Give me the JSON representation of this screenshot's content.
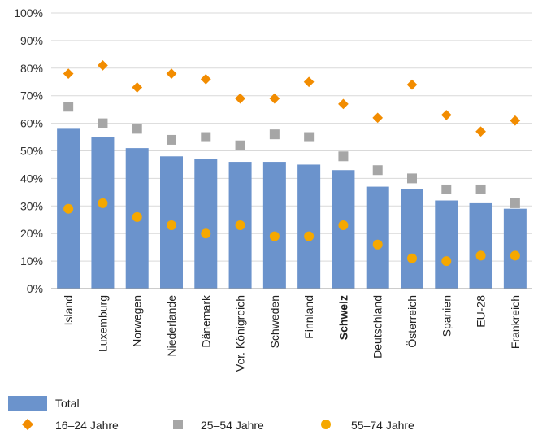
{
  "chart_data": {
    "type": "bar",
    "categories": [
      "Island",
      "Luxemburg",
      "Norwegen",
      "Niederlande",
      "Dänemark",
      "Ver. Königreich",
      "Schweden",
      "Finnland",
      "Schweiz",
      "Deutschland",
      "Österreich",
      "Spanien",
      "EU-28",
      "Frankreich"
    ],
    "highlight_category": "Schweiz",
    "series": [
      {
        "name": "Total",
        "kind": "bar",
        "color": "#6b93cc",
        "values": [
          58,
          55,
          51,
          48,
          47,
          46,
          46,
          45,
          43,
          37,
          36,
          32,
          31,
          29
        ]
      },
      {
        "name": "16–24 Jahre",
        "kind": "diamond",
        "color": "#f28c00",
        "values": [
          78,
          81,
          73,
          78,
          76,
          69,
          69,
          75,
          67,
          62,
          74,
          63,
          57,
          61
        ]
      },
      {
        "name": "25–54 Jahre",
        "kind": "square",
        "color": "#a6a6a6",
        "values": [
          66,
          60,
          58,
          54,
          55,
          52,
          56,
          55,
          48,
          43,
          40,
          36,
          36,
          31
        ]
      },
      {
        "name": "55–74 Jahre",
        "kind": "circle",
        "color": "#f5a800",
        "values": [
          29,
          31,
          26,
          23,
          20,
          23,
          19,
          19,
          23,
          16,
          11,
          10,
          12,
          12
        ]
      }
    ],
    "y_ticks": [
      "0%",
      "10%",
      "20%",
      "30%",
      "40%",
      "50%",
      "60%",
      "70%",
      "80%",
      "90%",
      "100%"
    ],
    "ylim": [
      0,
      100
    ],
    "grid": true,
    "legend_position": "bottom-left"
  }
}
